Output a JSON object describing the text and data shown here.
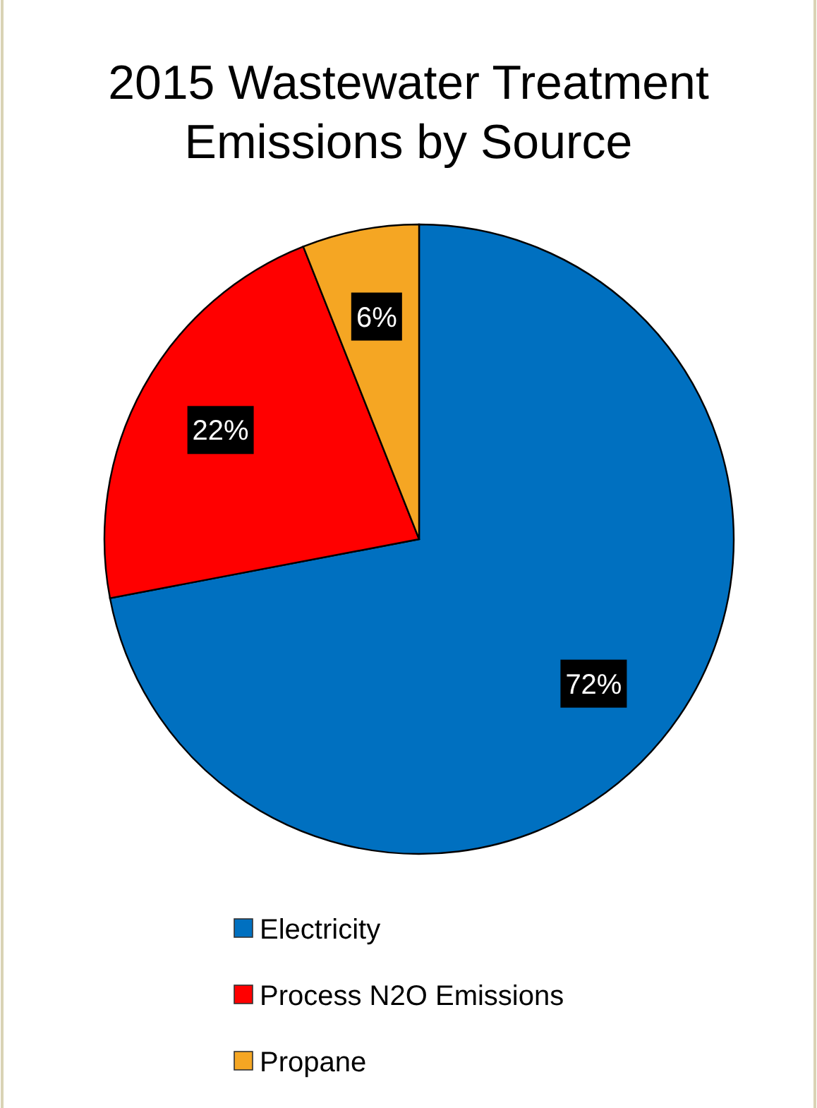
{
  "chart_data": {
    "type": "pie",
    "title": "2015 Wastewater Treatment Emissions by Source",
    "categories": [
      "Electricity",
      "Process N2O Emissions",
      "Propane"
    ],
    "values": [
      72,
      22,
      6
    ],
    "colors": [
      "#0070c0",
      "#ff0000",
      "#f5a623"
    ],
    "value_labels": [
      "72%",
      "22%",
      "6%"
    ],
    "legend": "bottom"
  }
}
